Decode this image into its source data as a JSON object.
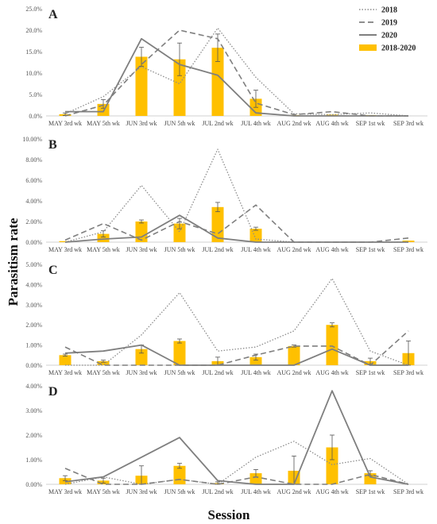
{
  "figure": {
    "ylabel": "Parasitism rate",
    "xlabel": "Session"
  },
  "legend": {
    "placement": "top-right",
    "items": [
      {
        "name": "2018",
        "style": "dotted-line"
      },
      {
        "name": "2019",
        "style": "dashed-line"
      },
      {
        "name": "2020",
        "style": "solid-line"
      },
      {
        "name": "2018-2020",
        "style": "bar"
      }
    ]
  },
  "colors": {
    "bar": "#FFC000",
    "line_2018": "#8c8c8c",
    "line_2019": "#7f7f7f",
    "line_2020": "#7f7f7f",
    "axis": "#d0d0d0",
    "text": "#555555"
  },
  "chart_data": [
    {
      "type": "bar",
      "panel": "A",
      "categories": [
        "MAY 3rd wk",
        "MAY 5th wk",
        "JUN 3rd wk",
        "JUN 5th wk",
        "JUL 2nd wk",
        "JUL 4th wk",
        "AUG 2nd wk",
        "AUG 4th wk",
        "SEP 1st wk",
        "SEP 3rd wk"
      ],
      "yticks": [
        "0.0%",
        "5.0%",
        "10.0%",
        "15.0%",
        "20.0%",
        "25.0%"
      ],
      "ylim": [
        0,
        25
      ],
      "series": [
        {
          "name": "2018",
          "kind": "line",
          "values": [
            0.5,
            4.5,
            11.5,
            7.5,
            20.5,
            9.0,
            0.5,
            0.3,
            0.7,
            0
          ]
        },
        {
          "name": "2019",
          "kind": "line",
          "values": [
            0,
            2.5,
            12.0,
            20.0,
            18.0,
            3.0,
            0.3,
            1.0,
            0,
            0
          ]
        },
        {
          "name": "2020",
          "kind": "line",
          "values": [
            1.0,
            1.0,
            18.0,
            12.0,
            9.5,
            0.7,
            0,
            0,
            0,
            0
          ]
        },
        {
          "name": "2018-2020",
          "kind": "bar",
          "values": [
            0.4,
            2.8,
            13.8,
            13.2,
            15.9,
            4.0,
            0.2,
            0.3,
            0.2,
            0
          ],
          "errors": [
            0.3,
            1.0,
            2.2,
            3.8,
            3.2,
            2.0,
            0,
            0,
            0,
            0
          ]
        }
      ]
    },
    {
      "type": "bar",
      "panel": "B",
      "categories": [
        "MAY 3rd wk",
        "MAY 5th wk",
        "JUN 3rd wk",
        "JUN 5th wk",
        "JUL 2nd wk",
        "JUL 4th wk",
        "AUG 2nd wk",
        "AUG 4th wk",
        "SEP 1st wk",
        "SEP 3rd wk"
      ],
      "yticks": [
        "0.00%",
        "2.00%",
        "4.00%",
        "6.00%",
        "8.00%",
        "10.00%"
      ],
      "ylim": [
        0,
        10
      ],
      "series": [
        {
          "name": "2018",
          "kind": "line",
          "values": [
            0,
            1.0,
            5.5,
            1.0,
            9.0,
            0.3,
            0,
            0,
            0,
            0
          ]
        },
        {
          "name": "2019",
          "kind": "line",
          "values": [
            0.2,
            1.8,
            0.2,
            2.0,
            0.8,
            3.6,
            0,
            0,
            0,
            0.4
          ]
        },
        {
          "name": "2020",
          "kind": "line",
          "values": [
            0,
            0.3,
            0.5,
            2.6,
            0.4,
            0,
            0,
            0,
            0,
            0
          ]
        },
        {
          "name": "2018-2020",
          "kind": "bar",
          "values": [
            0.1,
            0.8,
            2.0,
            1.8,
            3.4,
            1.3,
            0,
            0,
            0,
            0.15
          ],
          "errors": [
            0,
            0.3,
            0.15,
            0.5,
            0.45,
            0.15,
            0,
            0,
            0,
            0
          ]
        }
      ]
    },
    {
      "type": "bar",
      "panel": "C",
      "categories": [
        "MAY 3rd wk",
        "MAY 5th wk",
        "JUN 3rd wk",
        "JUN 5th wk",
        "JUL 2nd wk",
        "JUL 4th wk",
        "AUG 2nd wk",
        "AUG 4th wk",
        "SEP 1st wk",
        "SEP 3rd wk"
      ],
      "yticks": [
        "0.00%",
        "1.00%",
        "2.00%",
        "3.00%",
        "4.00%",
        "5.00%"
      ],
      "ylim": [
        0,
        5
      ],
      "series": [
        {
          "name": "2018",
          "kind": "line",
          "values": [
            0,
            0,
            1.5,
            3.6,
            0.7,
            0.9,
            1.7,
            4.3,
            0.7,
            0
          ]
        },
        {
          "name": "2019",
          "kind": "line",
          "values": [
            0.9,
            0,
            0,
            0,
            0,
            0.5,
            0.95,
            0.95,
            0,
            1.7
          ]
        },
        {
          "name": "2020",
          "kind": "line",
          "values": [
            0.6,
            0.7,
            1.0,
            0,
            0,
            0,
            0,
            0.8,
            0,
            0
          ]
        },
        {
          "name": "2018-2020",
          "kind": "bar",
          "values": [
            0.5,
            0.2,
            0.8,
            1.2,
            0.2,
            0.4,
            0.95,
            2.0,
            0.2,
            0.6
          ],
          "errors": [
            0.05,
            0.05,
            0.2,
            0.1,
            0.2,
            0.15,
            0.05,
            0.1,
            0.15,
            0.6
          ]
        }
      ]
    },
    {
      "type": "bar",
      "panel": "D",
      "categories": [
        "MAY 3rd wk",
        "MAY 5th wk",
        "JUN 3rd wk",
        "JUN 5th wk",
        "JUL 2nd wk",
        "JUL 4th wk",
        "AUG 2nd wk",
        "AUG 4th wk",
        "SEP 1st wk",
        "SEP 3rd wk"
      ],
      "yticks": [
        "0.00%",
        "1.00%",
        "2.00%",
        "3.00%",
        "4.00%"
      ],
      "ylim": [
        0,
        4
      ],
      "series": [
        {
          "name": "2018",
          "kind": "line",
          "values": [
            0,
            0.3,
            0,
            0.2,
            0,
            1.1,
            1.75,
            0.8,
            1.05,
            0
          ]
        },
        {
          "name": "2019",
          "kind": "line",
          "values": [
            0.65,
            0,
            0,
            0.2,
            0,
            0.3,
            0,
            0,
            0.4,
            0
          ]
        },
        {
          "name": "2020",
          "kind": "line",
          "values": [
            0.1,
            0.3,
            1.1,
            1.9,
            0.15,
            0,
            0,
            3.8,
            0.3,
            0
          ]
        },
        {
          "name": "2018-2020",
          "kind": "bar",
          "values": [
            0.25,
            0.15,
            0.35,
            0.75,
            0.05,
            0.45,
            0.55,
            1.5,
            0.45,
            0
          ],
          "errors": [
            0.1,
            0.1,
            0.4,
            0.1,
            0.05,
            0.15,
            0.6,
            0.5,
            0.1,
            0
          ]
        }
      ]
    }
  ]
}
